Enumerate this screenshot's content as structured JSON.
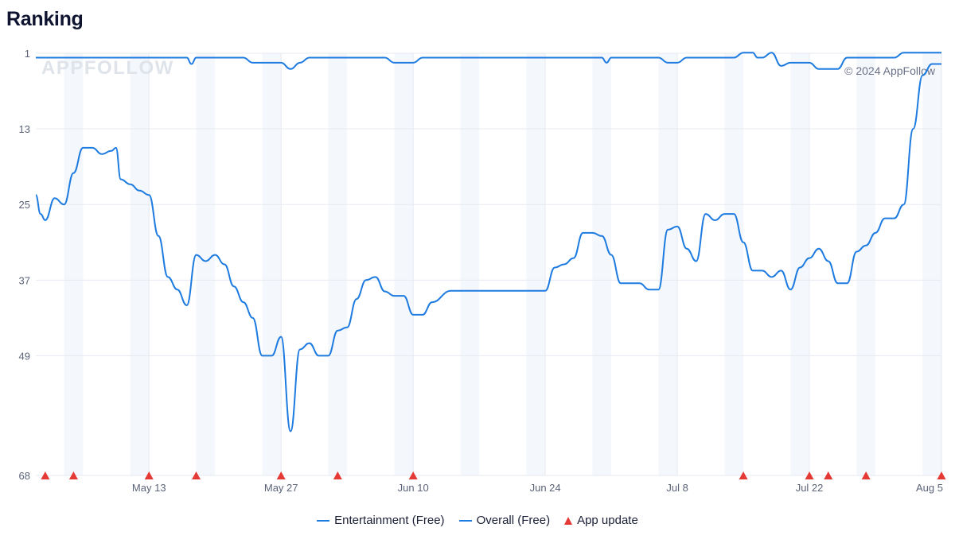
{
  "page": {
    "title": "Ranking"
  },
  "watermark": "APPFOLLOW",
  "copyright": "© 2024 AppFollow",
  "chart_data": {
    "type": "line",
    "title": "Ranking",
    "xlabel": "",
    "ylabel": "",
    "y_inverted": true,
    "ylim": [
      1,
      68
    ],
    "y_ticks": [
      "1",
      "13",
      "25",
      "37",
      "49",
      "68"
    ],
    "x_range": [
      "2024-05-01",
      "2024-08-05"
    ],
    "x_ticks": [
      {
        "date": "2024-05-13",
        "label": "May 13"
      },
      {
        "date": "2024-05-27",
        "label": "May 27"
      },
      {
        "date": "2024-06-10",
        "label": "Jun 10"
      },
      {
        "date": "2024-06-24",
        "label": "Jun 24"
      },
      {
        "date": "2024-07-08",
        "label": "Jul 8"
      },
      {
        "date": "2024-07-22",
        "label": "Jul 22"
      },
      {
        "date": "2024-08-05",
        "label": "Aug 5"
      }
    ],
    "weekend_bands": true,
    "grid": true,
    "legend_position": "bottom-center",
    "colors": {
      "line": "#1e7be0",
      "update": "#e53935",
      "band": "#f4f7fb",
      "grid": "#e6eaf0"
    },
    "series": [
      {
        "name": "Entertainment (Free)",
        "points": [
          [
            "2024-05-01",
            1.7
          ],
          [
            "2024-05-17",
            1.7
          ],
          [
            "2024-05-17T12:00",
            2.7
          ],
          [
            "2024-05-18",
            1.7
          ],
          [
            "2024-05-23",
            1.7
          ],
          [
            "2024-05-24",
            2.5
          ],
          [
            "2024-05-27",
            2.5
          ],
          [
            "2024-05-28",
            3.5
          ],
          [
            "2024-05-29",
            2.5
          ],
          [
            "2024-05-30",
            1.7
          ],
          [
            "2024-06-07",
            1.7
          ],
          [
            "2024-06-08",
            2.5
          ],
          [
            "2024-06-10",
            2.5
          ],
          [
            "2024-06-11",
            1.7
          ],
          [
            "2024-06-30",
            1.7
          ],
          [
            "2024-06-30T12:00",
            2.5
          ],
          [
            "2024-07-01",
            1.7
          ],
          [
            "2024-07-06",
            1.7
          ],
          [
            "2024-07-07",
            2.5
          ],
          [
            "2024-07-08",
            2.5
          ],
          [
            "2024-07-09",
            1.7
          ],
          [
            "2024-07-14",
            1.7
          ],
          [
            "2024-07-15",
            0.9
          ],
          [
            "2024-07-16",
            0.9
          ],
          [
            "2024-07-16T12:00",
            1.7
          ],
          [
            "2024-07-17",
            1.7
          ],
          [
            "2024-07-18",
            0.9
          ],
          [
            "2024-07-19",
            3.0
          ],
          [
            "2024-07-20",
            2.5
          ],
          [
            "2024-07-22",
            2.5
          ],
          [
            "2024-07-23",
            3.5
          ],
          [
            "2024-07-25",
            3.5
          ],
          [
            "2024-07-26",
            1.7
          ],
          [
            "2024-07-30",
            1.7
          ],
          [
            "2024-07-31",
            1.7
          ],
          [
            "2024-08-01",
            0.9
          ],
          [
            "2024-08-05",
            0.9
          ]
        ]
      },
      {
        "name": "Overall (Free)",
        "points": [
          [
            "2024-05-01",
            23.5
          ],
          [
            "2024-05-01T12:00",
            26.5
          ],
          [
            "2024-05-02",
            27.5
          ],
          [
            "2024-05-03",
            24
          ],
          [
            "2024-05-04",
            25
          ],
          [
            "2024-05-05",
            20
          ],
          [
            "2024-05-06",
            16
          ],
          [
            "2024-05-07",
            16
          ],
          [
            "2024-05-08",
            17
          ],
          [
            "2024-05-09",
            16.5
          ],
          [
            "2024-05-09T12:00",
            16
          ],
          [
            "2024-05-10",
            21
          ],
          [
            "2024-05-11",
            21.8
          ],
          [
            "2024-05-12",
            22.8
          ],
          [
            "2024-05-13",
            23.5
          ],
          [
            "2024-05-14",
            30
          ],
          [
            "2024-05-15",
            36.5
          ],
          [
            "2024-05-16",
            38.5
          ],
          [
            "2024-05-17",
            41
          ],
          [
            "2024-05-18",
            33
          ],
          [
            "2024-05-19",
            34
          ],
          [
            "2024-05-20",
            33
          ],
          [
            "2024-05-21",
            34.5
          ],
          [
            "2024-05-22",
            38
          ],
          [
            "2024-05-23",
            40.5
          ],
          [
            "2024-05-24",
            43
          ],
          [
            "2024-05-25",
            49
          ],
          [
            "2024-05-26",
            49
          ],
          [
            "2024-05-27",
            46
          ],
          [
            "2024-05-28",
            61
          ],
          [
            "2024-05-29",
            48
          ],
          [
            "2024-05-30",
            47
          ],
          [
            "2024-05-31",
            49
          ],
          [
            "2024-06-01",
            49
          ],
          [
            "2024-06-02",
            45
          ],
          [
            "2024-06-03",
            44.5
          ],
          [
            "2024-06-04",
            40
          ],
          [
            "2024-06-05",
            37
          ],
          [
            "2024-06-06",
            36.5
          ],
          [
            "2024-06-07",
            38.8
          ],
          [
            "2024-06-08",
            39.5
          ],
          [
            "2024-06-09",
            39.5
          ],
          [
            "2024-06-10",
            42.5
          ],
          [
            "2024-06-11",
            42.5
          ],
          [
            "2024-06-12",
            40.5
          ],
          [
            "2024-06-14",
            38.7
          ],
          [
            "2024-06-23",
            38.7
          ],
          [
            "2024-06-24",
            38.7
          ],
          [
            "2024-06-25",
            35
          ],
          [
            "2024-06-26",
            34.5
          ],
          [
            "2024-06-27",
            33.5
          ],
          [
            "2024-06-28",
            29.5
          ],
          [
            "2024-06-29",
            29.5
          ],
          [
            "2024-06-30",
            30
          ],
          [
            "2024-07-01",
            33
          ],
          [
            "2024-07-02",
            37.5
          ],
          [
            "2024-07-04",
            37.5
          ],
          [
            "2024-07-05",
            38.5
          ],
          [
            "2024-07-06",
            38.5
          ],
          [
            "2024-07-07",
            29
          ],
          [
            "2024-07-08",
            28.5
          ],
          [
            "2024-07-09",
            32
          ],
          [
            "2024-07-10",
            34
          ],
          [
            "2024-07-11",
            26.5
          ],
          [
            "2024-07-12",
            27.5
          ],
          [
            "2024-07-13",
            26.5
          ],
          [
            "2024-07-14",
            26.5
          ],
          [
            "2024-07-15",
            31
          ],
          [
            "2024-07-16",
            35.5
          ],
          [
            "2024-07-17",
            35.5
          ],
          [
            "2024-07-18",
            36.5
          ],
          [
            "2024-07-19",
            35.5
          ],
          [
            "2024-07-20",
            38.5
          ],
          [
            "2024-07-21",
            35
          ],
          [
            "2024-07-22",
            33.5
          ],
          [
            "2024-07-23",
            32
          ],
          [
            "2024-07-24",
            34
          ],
          [
            "2024-07-25",
            37.5
          ],
          [
            "2024-07-26",
            37.5
          ],
          [
            "2024-07-27",
            32.5
          ],
          [
            "2024-07-28",
            31.5
          ],
          [
            "2024-07-29",
            29.5
          ],
          [
            "2024-07-30",
            27.2
          ],
          [
            "2024-07-31",
            27.2
          ],
          [
            "2024-08-01",
            25
          ],
          [
            "2024-08-02",
            13
          ],
          [
            "2024-08-03",
            4.5
          ],
          [
            "2024-08-04",
            2.7
          ],
          [
            "2024-08-05",
            2.7
          ]
        ]
      }
    ],
    "app_updates": {
      "name": "App update",
      "dates": [
        "2024-05-02",
        "2024-05-05",
        "2024-05-13",
        "2024-05-18",
        "2024-05-27",
        "2024-06-02",
        "2024-06-10",
        "2024-07-15",
        "2024-07-22",
        "2024-07-24",
        "2024-07-28",
        "2024-08-05"
      ]
    }
  }
}
